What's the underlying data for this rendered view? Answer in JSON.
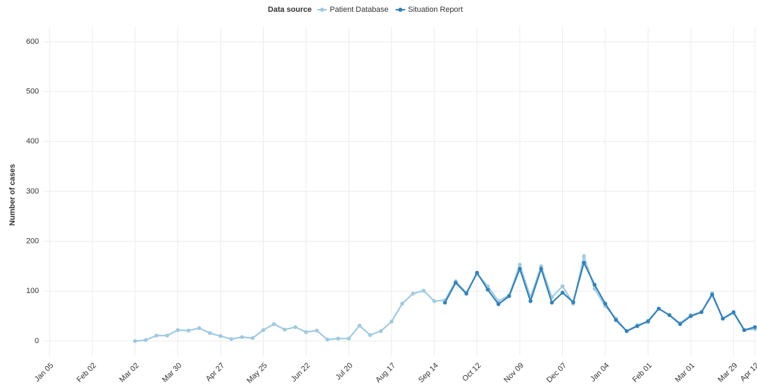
{
  "chart_data": {
    "type": "line",
    "legend_title": "Data source",
    "y_label": "Number of cases",
    "x": [
      8,
      9,
      10,
      11,
      12,
      13,
      14,
      15,
      16,
      17,
      18,
      19,
      20,
      21,
      22,
      23,
      24,
      25,
      26,
      27,
      28,
      29,
      30,
      31,
      32,
      33,
      34,
      35,
      36,
      37,
      38,
      39,
      40,
      41,
      42,
      43,
      44,
      45,
      46,
      47,
      48,
      49,
      50,
      51,
      52,
      53,
      54,
      55,
      56,
      57,
      58,
      59,
      60,
      61,
      62,
      63,
      64,
      65,
      66
    ],
    "series": [
      {
        "name": "Patient Database",
        "color": "#9ecae1",
        "values": [
          0,
          2,
          11,
          11,
          22,
          21,
          26,
          16,
          10,
          4,
          8,
          6,
          22,
          34,
          23,
          28,
          18,
          21,
          3,
          5,
          5,
          31,
          12,
          20,
          39,
          75,
          95,
          101,
          80,
          82,
          120,
          97,
          135,
          110,
          80,
          92,
          153,
          88,
          150,
          88,
          110,
          75,
          170,
          105,
          70,
          45,
          20,
          32,
          38,
          65,
          52,
          36,
          52,
          58,
          96,
          45,
          56,
          22,
          24
        ]
      },
      {
        "name": "Situation Report",
        "color": "#3182bd",
        "values": [
          null,
          null,
          null,
          null,
          null,
          null,
          null,
          null,
          null,
          null,
          null,
          null,
          null,
          null,
          null,
          null,
          null,
          null,
          null,
          null,
          null,
          null,
          null,
          null,
          null,
          null,
          null,
          null,
          null,
          77,
          117,
          95,
          137,
          103,
          74,
          90,
          145,
          80,
          145,
          77,
          97,
          78,
          157,
          113,
          75,
          42,
          20,
          30,
          40,
          65,
          52,
          34,
          50,
          58,
          93,
          45,
          58,
          22,
          28
        ]
      }
    ],
    "xlim": [
      -0.6,
      66
    ],
    "xticks": [
      {
        "value": 0,
        "label": "Jan 05"
      },
      {
        "value": 4,
        "label": "Feb 02"
      },
      {
        "value": 8,
        "label": "Mar 02"
      },
      {
        "value": 12,
        "label": "Mar 30"
      },
      {
        "value": 16,
        "label": "Apr 27"
      },
      {
        "value": 20,
        "label": "May 25"
      },
      {
        "value": 24,
        "label": "Jun 22"
      },
      {
        "value": 28,
        "label": "Jul 20"
      },
      {
        "value": 32,
        "label": "Aug 17"
      },
      {
        "value": 36,
        "label": "Sep 14"
      },
      {
        "value": 40,
        "label": "Oct 12"
      },
      {
        "value": 44,
        "label": "Nov 09"
      },
      {
        "value": 48,
        "label": "Dec 07"
      },
      {
        "value": 52,
        "label": "Jan 04"
      },
      {
        "value": 56,
        "label": "Feb 01"
      },
      {
        "value": 60,
        "label": "Mar 01"
      },
      {
        "value": 64,
        "label": "Mar 29"
      },
      {
        "value": 66,
        "label": "Apr 12"
      }
    ],
    "ylim": [
      -30,
      630
    ],
    "yticks": [
      0,
      100,
      200,
      300,
      400,
      500,
      600
    ],
    "grid": true,
    "legend": "top"
  }
}
